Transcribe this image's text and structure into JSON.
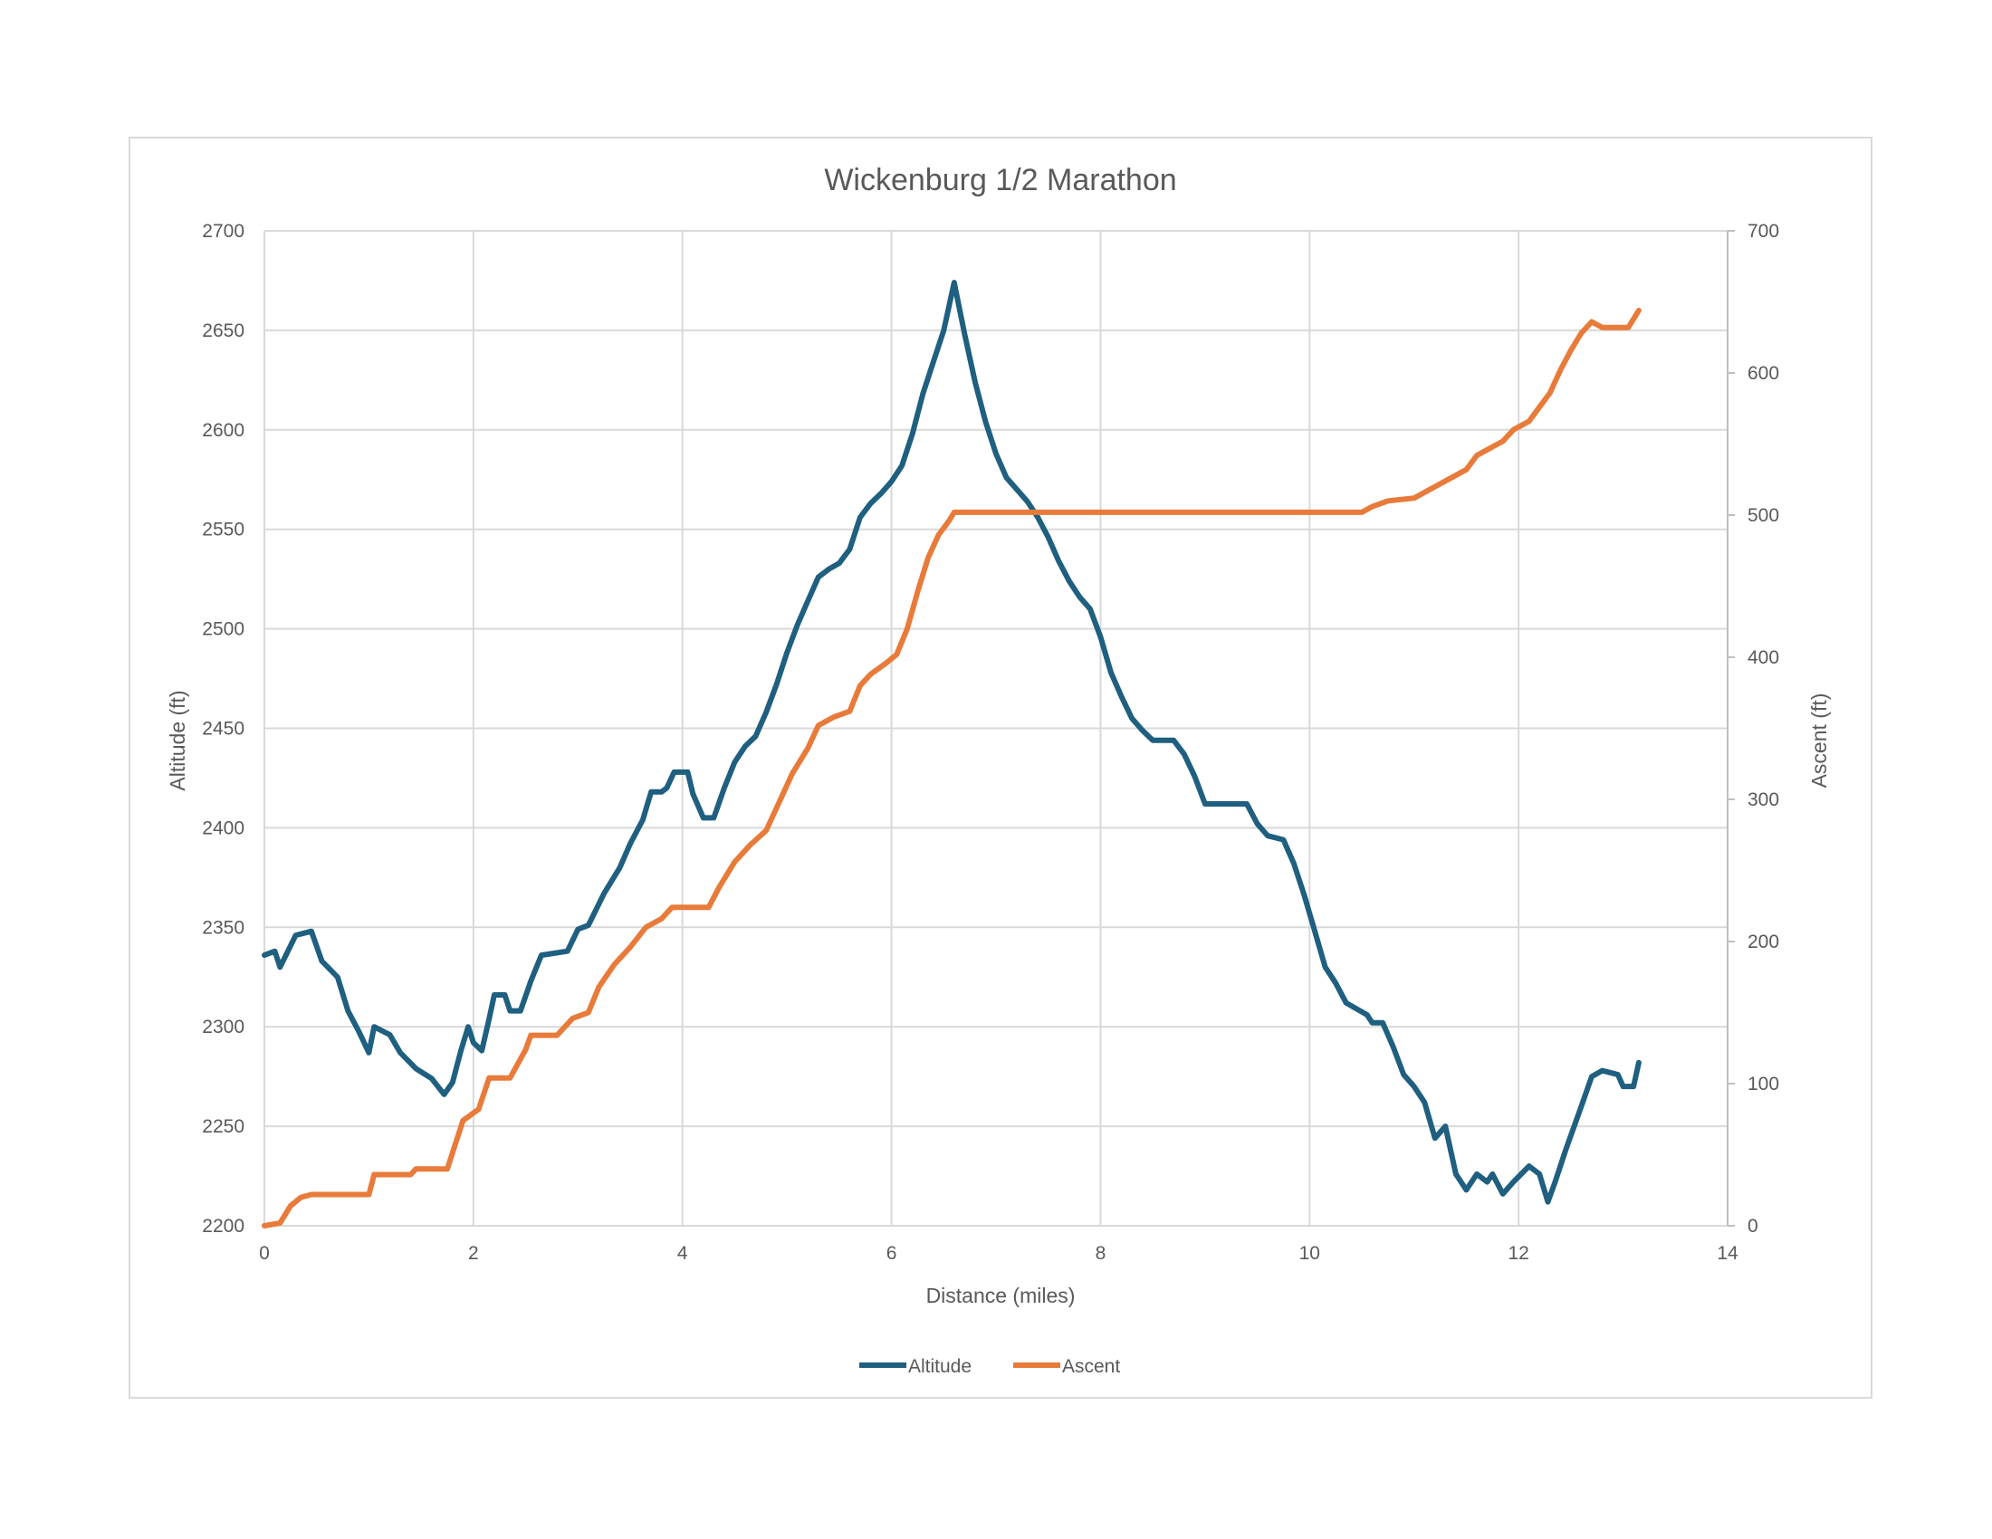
{
  "chart_data": {
    "type": "line",
    "title": "Wickenburg 1/2 Marathon",
    "xlabel": "Distance (miles)",
    "ylabel": "Altitude (ft)",
    "y2label": "Ascent (ft)",
    "xlim": [
      0,
      14
    ],
    "ylim": [
      2200,
      2700
    ],
    "y2lim": [
      0,
      700
    ],
    "x_ticks": [
      0,
      2,
      4,
      6,
      8,
      10,
      12,
      14
    ],
    "y_ticks": [
      2200,
      2250,
      2300,
      2350,
      2400,
      2450,
      2500,
      2550,
      2600,
      2650,
      2700
    ],
    "y2_ticks": [
      0,
      100,
      200,
      300,
      400,
      500,
      600,
      700
    ],
    "grid": true,
    "legend_position": "bottom",
    "series": [
      {
        "name": "Altitude",
        "axis": "left",
        "color": "#1f5f7f",
        "points": [
          [
            0,
            2336
          ],
          [
            0.1,
            2338
          ],
          [
            0.15,
            2330
          ],
          [
            0.3,
            2346
          ],
          [
            0.45,
            2348
          ],
          [
            0.55,
            2333
          ],
          [
            0.7,
            2325
          ],
          [
            0.8,
            2308
          ],
          [
            0.9,
            2298
          ],
          [
            1.0,
            2287
          ],
          [
            1.05,
            2300
          ],
          [
            1.2,
            2296
          ],
          [
            1.3,
            2287
          ],
          [
            1.45,
            2279
          ],
          [
            1.6,
            2274
          ],
          [
            1.72,
            2266
          ],
          [
            1.8,
            2272
          ],
          [
            1.88,
            2288
          ],
          [
            1.95,
            2300
          ],
          [
            2.0,
            2292
          ],
          [
            2.08,
            2288
          ],
          [
            2.15,
            2304
          ],
          [
            2.2,
            2316
          ],
          [
            2.3,
            2316
          ],
          [
            2.35,
            2308
          ],
          [
            2.45,
            2308
          ],
          [
            2.55,
            2323
          ],
          [
            2.65,
            2336
          ],
          [
            2.9,
            2338
          ],
          [
            3.0,
            2349
          ],
          [
            3.1,
            2351
          ],
          [
            3.25,
            2367
          ],
          [
            3.4,
            2380
          ],
          [
            3.5,
            2392
          ],
          [
            3.62,
            2404
          ],
          [
            3.7,
            2418
          ],
          [
            3.8,
            2418
          ],
          [
            3.85,
            2420
          ],
          [
            3.92,
            2428
          ],
          [
            4.05,
            2428
          ],
          [
            4.1,
            2417
          ],
          [
            4.2,
            2405
          ],
          [
            4.3,
            2405
          ],
          [
            4.4,
            2420
          ],
          [
            4.5,
            2433
          ],
          [
            4.6,
            2441
          ],
          [
            4.7,
            2446
          ],
          [
            4.8,
            2458
          ],
          [
            4.9,
            2472
          ],
          [
            5.0,
            2488
          ],
          [
            5.1,
            2502
          ],
          [
            5.2,
            2514
          ],
          [
            5.3,
            2526
          ],
          [
            5.4,
            2530
          ],
          [
            5.5,
            2533
          ],
          [
            5.6,
            2540
          ],
          [
            5.7,
            2556
          ],
          [
            5.8,
            2563
          ],
          [
            5.9,
            2568
          ],
          [
            6.0,
            2574
          ],
          [
            6.1,
            2582
          ],
          [
            6.2,
            2598
          ],
          [
            6.3,
            2618
          ],
          [
            6.4,
            2634
          ],
          [
            6.5,
            2650
          ],
          [
            6.6,
            2674
          ],
          [
            6.7,
            2648
          ],
          [
            6.8,
            2624
          ],
          [
            6.9,
            2604
          ],
          [
            7.0,
            2588
          ],
          [
            7.1,
            2576
          ],
          [
            7.2,
            2570
          ],
          [
            7.3,
            2564
          ],
          [
            7.4,
            2556
          ],
          [
            7.5,
            2546
          ],
          [
            7.6,
            2534
          ],
          [
            7.7,
            2524
          ],
          [
            7.8,
            2516
          ],
          [
            7.9,
            2510
          ],
          [
            8.0,
            2496
          ],
          [
            8.1,
            2478
          ],
          [
            8.2,
            2466
          ],
          [
            8.3,
            2455
          ],
          [
            8.4,
            2449
          ],
          [
            8.5,
            2444
          ],
          [
            8.7,
            2444
          ],
          [
            8.8,
            2437
          ],
          [
            8.9,
            2426
          ],
          [
            9.0,
            2412
          ],
          [
            9.4,
            2412
          ],
          [
            9.5,
            2402
          ],
          [
            9.6,
            2396
          ],
          [
            9.75,
            2394
          ],
          [
            9.85,
            2382
          ],
          [
            9.95,
            2366
          ],
          [
            10.05,
            2348
          ],
          [
            10.15,
            2330
          ],
          [
            10.25,
            2322
          ],
          [
            10.35,
            2312
          ],
          [
            10.55,
            2306
          ],
          [
            10.6,
            2302
          ],
          [
            10.7,
            2302
          ],
          [
            10.8,
            2290
          ],
          [
            10.9,
            2276
          ],
          [
            11.0,
            2270
          ],
          [
            11.1,
            2262
          ],
          [
            11.2,
            2244
          ],
          [
            11.3,
            2250
          ],
          [
            11.4,
            2226
          ],
          [
            11.5,
            2218
          ],
          [
            11.6,
            2226
          ],
          [
            11.7,
            2222
          ],
          [
            11.75,
            2226
          ],
          [
            11.85,
            2216
          ],
          [
            11.95,
            2222
          ],
          [
            12.1,
            2230
          ],
          [
            12.2,
            2226
          ],
          [
            12.28,
            2212
          ],
          [
            12.35,
            2222
          ],
          [
            12.45,
            2238
          ],
          [
            12.6,
            2260
          ],
          [
            12.7,
            2275
          ],
          [
            12.8,
            2278
          ],
          [
            12.95,
            2276
          ],
          [
            13.0,
            2270
          ],
          [
            13.1,
            2270
          ],
          [
            13.15,
            2282
          ]
        ]
      },
      {
        "name": "Ascent",
        "axis": "right",
        "color": "#e87b3a",
        "points": [
          [
            0,
            0
          ],
          [
            0.15,
            2
          ],
          [
            0.25,
            14
          ],
          [
            0.35,
            20
          ],
          [
            0.45,
            22
          ],
          [
            1.0,
            22
          ],
          [
            1.05,
            36
          ],
          [
            1.4,
            36
          ],
          [
            1.45,
            40
          ],
          [
            1.75,
            40
          ],
          [
            1.9,
            74
          ],
          [
            2.05,
            82
          ],
          [
            2.15,
            104
          ],
          [
            2.35,
            104
          ],
          [
            2.5,
            124
          ],
          [
            2.55,
            134
          ],
          [
            2.8,
            134
          ],
          [
            2.95,
            146
          ],
          [
            3.1,
            150
          ],
          [
            3.2,
            168
          ],
          [
            3.35,
            184
          ],
          [
            3.5,
            196
          ],
          [
            3.65,
            210
          ],
          [
            3.8,
            216
          ],
          [
            3.9,
            224
          ],
          [
            4.25,
            224
          ],
          [
            4.35,
            238
          ],
          [
            4.5,
            256
          ],
          [
            4.65,
            268
          ],
          [
            4.8,
            278
          ],
          [
            4.95,
            302
          ],
          [
            5.05,
            318
          ],
          [
            5.2,
            336
          ],
          [
            5.3,
            352
          ],
          [
            5.45,
            358
          ],
          [
            5.6,
            362
          ],
          [
            5.7,
            380
          ],
          [
            5.8,
            388
          ],
          [
            5.95,
            396
          ],
          [
            6.05,
            402
          ],
          [
            6.15,
            420
          ],
          [
            6.25,
            446
          ],
          [
            6.35,
            470
          ],
          [
            6.45,
            486
          ],
          [
            6.55,
            496
          ],
          [
            6.6,
            502
          ],
          [
            10.5,
            502
          ],
          [
            10.6,
            506
          ],
          [
            10.75,
            510
          ],
          [
            11.0,
            512
          ],
          [
            11.15,
            518
          ],
          [
            11.35,
            526
          ],
          [
            11.5,
            532
          ],
          [
            11.6,
            542
          ],
          [
            11.75,
            548
          ],
          [
            11.85,
            552
          ],
          [
            11.95,
            560
          ],
          [
            12.1,
            566
          ],
          [
            12.2,
            576
          ],
          [
            12.3,
            586
          ],
          [
            12.4,
            602
          ],
          [
            12.5,
            616
          ],
          [
            12.6,
            628
          ],
          [
            12.7,
            636
          ],
          [
            12.8,
            632
          ],
          [
            13.05,
            632
          ],
          [
            13.15,
            644
          ]
        ]
      }
    ]
  }
}
